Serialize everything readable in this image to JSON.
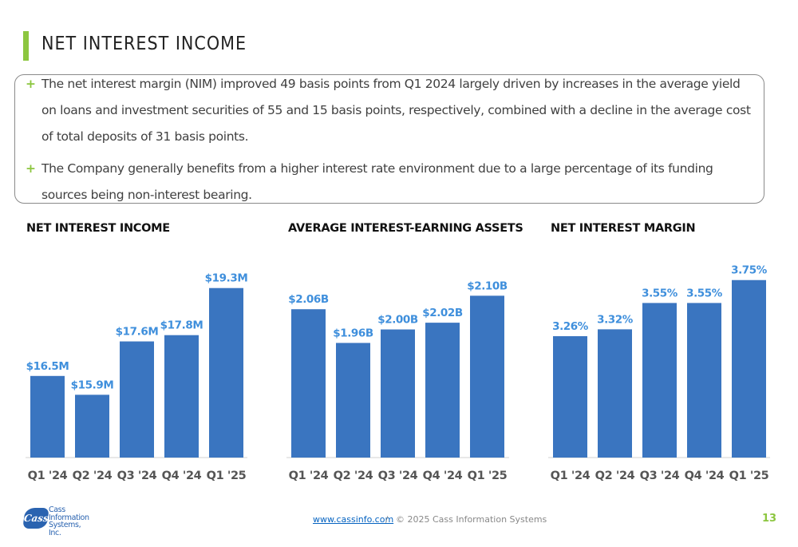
{
  "page": {
    "title": "NET INTEREST INCOME",
    "bullets": [
      "The net interest margin (NIM) improved 49 basis points from Q1 2024 largely driven by increases in the average yield on loans and investment securities of 55 and 15 basis points, respectively, combined with a decline in the average cost of total deposits of 31 basis points.",
      "The Company generally benefits from a higher interest rate environment due to a large percentage of its funding sources being non-interest bearing."
    ],
    "bullet_marker": "+",
    "accent_color": "#8cc63f",
    "bar_color": "#3a75c0",
    "label_color": "#3f8fdc"
  },
  "chart_data": [
    {
      "type": "bar",
      "title": "NET INTEREST INCOME",
      "categories": [
        "Q1 '24",
        "Q2 '24",
        "Q3 '24",
        "Q4 '24",
        "Q1 '25"
      ],
      "values": [
        16.5,
        15.9,
        17.6,
        17.8,
        19.3
      ],
      "labels": [
        "$16.5M",
        "$15.9M",
        "$17.6M",
        "$17.8M",
        "$19.3M"
      ],
      "ylim": [
        13.9,
        19.7
      ]
    },
    {
      "type": "bar",
      "title": "AVERAGE INTEREST-EARNING ASSETS",
      "categories": [
        "Q1 '24",
        "Q2 '24",
        "Q3 '24",
        "Q4 '24",
        "Q1 '25"
      ],
      "values": [
        2.06,
        1.96,
        2.0,
        2.02,
        2.1
      ],
      "labels": [
        "$2.06B",
        "$1.96B",
        "$2.00B",
        "$2.02B",
        "$2.10B"
      ],
      "ylim": [
        1.62,
        2.16
      ]
    },
    {
      "type": "bar",
      "title": "NET INTEREST MARGIN",
      "categories": [
        "Q1 '24",
        "Q2 '24",
        "Q3 '24",
        "Q4 '24",
        "Q1 '25"
      ],
      "values": [
        3.26,
        3.32,
        3.55,
        3.55,
        3.75
      ],
      "labels": [
        "3.26%",
        "3.32%",
        "3.55%",
        "3.55%",
        "3.75%"
      ],
      "ylim": [
        2.2,
        3.79
      ]
    }
  ],
  "footer": {
    "link": "www.cassinfo.com",
    "separator": "/",
    "copyright": "© 2025 Cass Information Systems",
    "page_number": "13",
    "logo_mark": "Cass",
    "logo_lines": [
      "Cass",
      "Information",
      "Systems, Inc."
    ]
  }
}
